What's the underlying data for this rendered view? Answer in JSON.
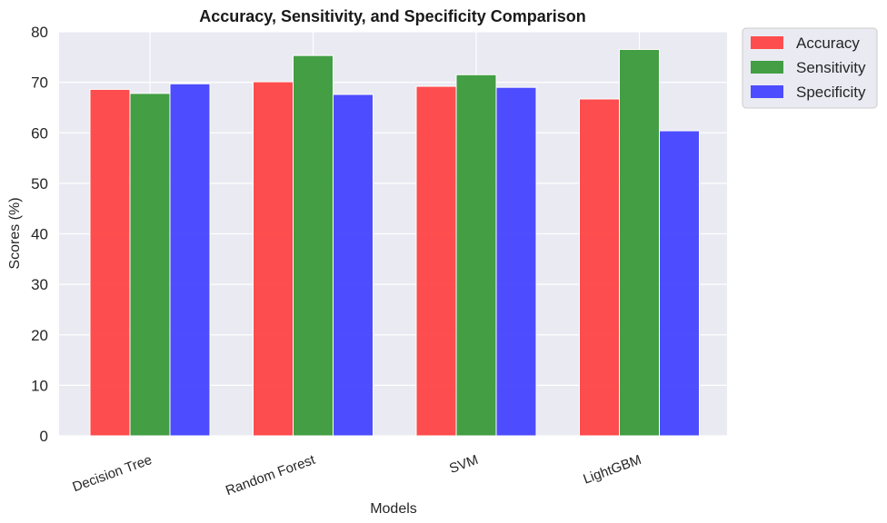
{
  "chart_data": {
    "type": "bar",
    "title": "Accuracy, Sensitivity, and Specificity Comparison",
    "xlabel": "Models",
    "ylabel": "Scores (%)",
    "categories": [
      "Decision Tree",
      "Random Forest",
      "SVM",
      "LightGBM"
    ],
    "series": [
      {
        "name": "Accuracy",
        "values": [
          68.6,
          70.1,
          69.2,
          66.7
        ],
        "color": "#ff4545"
      },
      {
        "name": "Sensitivity",
        "values": [
          67.8,
          75.3,
          71.5,
          76.5
        ],
        "color": "#3a9a3a"
      },
      {
        "name": "Specificity",
        "values": [
          69.7,
          67.6,
          69.0,
          60.4
        ],
        "color": "#4545ff"
      }
    ],
    "ylim": [
      0,
      80
    ],
    "yticks": [
      "0",
      "10",
      "20",
      "30",
      "40",
      "50",
      "60",
      "70",
      "80"
    ],
    "grid": true,
    "legend_placement": "outside-top-right",
    "background_color": "#eaeaf2"
  }
}
